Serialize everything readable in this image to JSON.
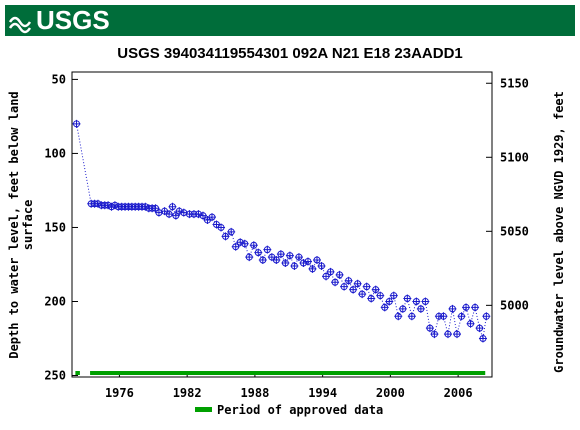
{
  "header": {
    "logo": "USGS"
  },
  "chart_data": {
    "type": "scatter",
    "title": "USGS 394034119554301 092A N21 E18 23AADD1",
    "ylabel_lines": [
      "Depth to water level, feet below land",
      "surface"
    ],
    "y2label": "Groundwater level above NGVD 1929, feet",
    "xlim": [
      1971.8,
      2009.0
    ],
    "xticks": [
      1976,
      1982,
      1988,
      1994,
      2000,
      2006
    ],
    "ylim": [
      45,
      251
    ],
    "y_inverted": true,
    "yticks": [
      50,
      100,
      150,
      200,
      250
    ],
    "y2lim": [
      4951.6,
      5157.6
    ],
    "y2ticks": [
      5000,
      5050,
      5100,
      5150
    ],
    "series": [
      {
        "name": "Depth to water level",
        "color": "#1a1acc",
        "x": [
          1972.2,
          1973.5,
          1973.8,
          1974.1,
          1974.4,
          1974.7,
          1975.0,
          1975.3,
          1975.6,
          1975.9,
          1976.2,
          1976.5,
          1976.8,
          1977.1,
          1977.4,
          1977.7,
          1978.0,
          1978.3,
          1978.6,
          1978.9,
          1979.2,
          1979.5,
          1980.0,
          1980.4,
          1980.7,
          1981.0,
          1981.3,
          1981.7,
          1982.2,
          1982.6,
          1983.0,
          1983.4,
          1983.8,
          1984.2,
          1984.6,
          1985.0,
          1985.4,
          1985.9,
          1986.3,
          1986.7,
          1987.1,
          1987.5,
          1987.9,
          1988.3,
          1988.7,
          1989.1,
          1989.5,
          1989.9,
          1990.3,
          1990.7,
          1991.1,
          1991.5,
          1991.9,
          1992.3,
          1992.7,
          1993.1,
          1993.5,
          1993.9,
          1994.3,
          1994.7,
          1995.1,
          1995.5,
          1995.9,
          1996.3,
          1996.7,
          1997.1,
          1997.5,
          1997.9,
          1998.3,
          1998.7,
          1999.1,
          1999.5,
          1999.9,
          2000.3,
          2000.7,
          2001.1,
          2001.5,
          2001.9,
          2002.3,
          2002.7,
          2003.1,
          2003.5,
          2003.9,
          2004.3,
          2004.7,
          2005.1,
          2005.5,
          2005.9,
          2006.3,
          2006.7,
          2007.1,
          2007.5,
          2007.9,
          2008.2,
          2008.5
        ],
        "values": [
          80,
          134,
          134,
          134,
          135,
          135,
          135,
          136,
          135,
          136,
          136,
          136,
          136,
          136,
          136,
          136,
          136,
          136,
          137,
          137,
          137,
          140,
          139,
          141,
          136,
          142,
          139,
          140,
          141,
          141,
          141,
          142,
          145,
          143,
          148,
          150,
          156,
          153,
          163,
          160,
          161,
          170,
          162,
          167,
          172,
          165,
          170,
          172,
          168,
          174,
          169,
          176,
          170,
          174,
          173,
          178,
          172,
          176,
          183,
          180,
          187,
          182,
          190,
          186,
          192,
          188,
          195,
          190,
          198,
          192,
          196,
          204,
          200,
          196,
          210,
          205,
          198,
          210,
          200,
          205,
          200,
          218,
          222,
          210,
          210,
          222,
          205,
          222,
          210,
          204,
          215,
          204,
          218,
          225,
          210
        ]
      }
    ],
    "approved_periods": [
      [
        1972.1,
        1972.5
      ],
      [
        1973.4,
        2008.4
      ]
    ],
    "approved_color": "#00a000",
    "legend_label": "Period of approved data"
  }
}
